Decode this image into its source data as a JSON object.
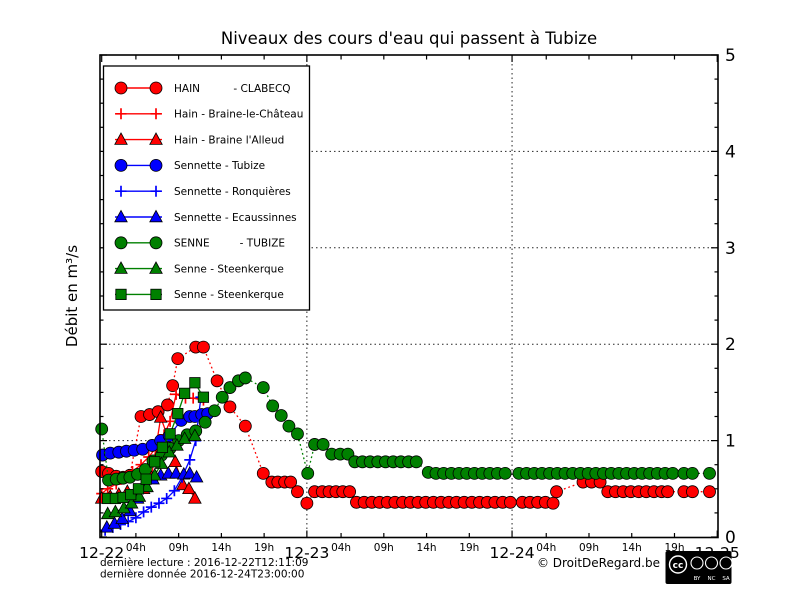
{
  "footer": {
    "last_reading": "dernière lecture : 2016-12-22T12:11:09",
    "last_data": "dernière donnée  2016-12-24T23:00:00",
    "copyright": "© DroitDeRegard.be",
    "license_parts": {
      "cc": "cc",
      "by": "BY",
      "nc": "NC",
      "sa": "SA"
    }
  },
  "chart_data": {
    "type": "line",
    "title": "Niveaux des cours d'eau qui passent à Tubize",
    "xlabel": "",
    "ylabel": "Débit en m³/s",
    "x_unit": "hours from 2016-12-22 00:00",
    "xlim": [
      0,
      72
    ],
    "ylim": [
      0,
      5
    ],
    "y_ticks": [
      0,
      1,
      2,
      3,
      4,
      5
    ],
    "y_tick_labels": [
      "0",
      "1",
      "2",
      "3",
      "4",
      "5"
    ],
    "y_minor_tick_step": 0.25,
    "x_day_labels": [
      "12-22",
      "12-23",
      "12-24",
      "12-25"
    ],
    "x_hour_labels": [
      "04h",
      "09h",
      "14h",
      "19h"
    ],
    "x_hour_offsets": [
      4,
      9,
      14,
      19
    ],
    "grid": "dotted horizontal at integers, dotted vertical at day boundaries",
    "legend_position": "upper left",
    "series": [
      {
        "id": "hain-clabecq",
        "label": "HAIN          - CLABECQ",
        "color": "#ff0000",
        "marker": "circle",
        "linestyle": "dotted",
        "points": [
          [
            0,
            0.68
          ],
          [
            0.8,
            0.66
          ],
          [
            1.7,
            0.63
          ],
          [
            2.5,
            0.62
          ],
          [
            3.3,
            0.64
          ],
          [
            4.6,
            1.25
          ],
          [
            5.6,
            1.27
          ],
          [
            6.6,
            1.3
          ],
          [
            7.7,
            1.37
          ],
          [
            8.3,
            1.57
          ],
          [
            8.9,
            1.85
          ],
          [
            11,
            1.97
          ],
          [
            11.9,
            1.97
          ],
          [
            13.5,
            1.62
          ],
          [
            15,
            1.35
          ],
          [
            16.8,
            1.15
          ],
          [
            18.9,
            0.66
          ],
          [
            19.9,
            0.57
          ],
          [
            20.6,
            0.57
          ],
          [
            21.4,
            0.57
          ],
          [
            22.1,
            0.57
          ],
          [
            22.9,
            0.47
          ],
          [
            24,
            0.35
          ],
          [
            24.9,
            0.47
          ],
          [
            25.8,
            0.47
          ],
          [
            26.6,
            0.47
          ],
          [
            27.4,
            0.47
          ],
          [
            28.2,
            0.47
          ],
          [
            29,
            0.47
          ],
          [
            29.8,
            0.36
          ],
          [
            30.7,
            0.36
          ],
          [
            31.6,
            0.36
          ],
          [
            32.5,
            0.36
          ],
          [
            33.4,
            0.36
          ],
          [
            34.3,
            0.36
          ],
          [
            35.2,
            0.36
          ],
          [
            36.1,
            0.36
          ],
          [
            37,
            0.36
          ],
          [
            37.9,
            0.36
          ],
          [
            38.8,
            0.36
          ],
          [
            39.7,
            0.36
          ],
          [
            40.6,
            0.36
          ],
          [
            41.5,
            0.36
          ],
          [
            42.4,
            0.36
          ],
          [
            43.3,
            0.36
          ],
          [
            44.2,
            0.36
          ],
          [
            45.1,
            0.36
          ],
          [
            46,
            0.36
          ],
          [
            46.9,
            0.36
          ],
          [
            47.8,
            0.36
          ],
          [
            49.2,
            0.36
          ],
          [
            50.1,
            0.36
          ],
          [
            51,
            0.36
          ],
          [
            51.9,
            0.36
          ],
          [
            52.8,
            0.35
          ],
          [
            53.2,
            0.47
          ],
          [
            56.3,
            0.57
          ],
          [
            57.3,
            0.57
          ],
          [
            58.3,
            0.57
          ],
          [
            59.2,
            0.47
          ],
          [
            60.1,
            0.47
          ],
          [
            61,
            0.47
          ],
          [
            61.9,
            0.47
          ],
          [
            62.8,
            0.47
          ],
          [
            63.7,
            0.47
          ],
          [
            64.6,
            0.47
          ],
          [
            65.5,
            0.47
          ],
          [
            66.2,
            0.47
          ],
          [
            68.1,
            0.47
          ],
          [
            69.1,
            0.47
          ],
          [
            71.1,
            0.47
          ]
        ]
      },
      {
        "id": "hain-braine-le-chateau",
        "label": "Hain - Braine-le-Château",
        "color": "#ff0000",
        "marker": "plus",
        "linestyle": "solid",
        "points": [
          [
            0,
            0.45
          ],
          [
            0.7,
            0.5
          ],
          [
            1.7,
            0.55
          ],
          [
            2.7,
            0.62
          ],
          [
            3.6,
            0.68
          ],
          [
            4.6,
            0.75
          ],
          [
            5.5,
            0.83
          ],
          [
            6.4,
            0.93
          ],
          [
            7.3,
            1.06
          ],
          [
            8,
            1.2
          ],
          [
            8.7,
            1.48
          ],
          [
            9.8,
            1.44
          ],
          [
            10.7,
            1.44
          ],
          [
            11.9,
            1.42
          ]
        ]
      },
      {
        "id": "hain-braine-l-alleud",
        "label": "Hain - Braine l'Alleud",
        "color": "#ff0000",
        "marker": "triangle",
        "linestyle": "solid",
        "points": [
          [
            0,
            0.4
          ],
          [
            1,
            0.42
          ],
          [
            2,
            0.44
          ],
          [
            3,
            0.47
          ],
          [
            4,
            0.47
          ],
          [
            4.9,
            0.5
          ],
          [
            5.8,
            0.62
          ],
          [
            6.9,
            1.24
          ],
          [
            7.7,
            1.05
          ],
          [
            8.6,
            0.78
          ],
          [
            9.5,
            0.54
          ],
          [
            10.2,
            0.5
          ],
          [
            10.9,
            0.4
          ]
        ]
      },
      {
        "id": "sennette-tubize",
        "label": "Sennette - Tubize",
        "color": "#0000ff",
        "marker": "circle",
        "linestyle": "solid",
        "points": [
          [
            0.1,
            0.85
          ],
          [
            1,
            0.87
          ],
          [
            2,
            0.88
          ],
          [
            2.9,
            0.89
          ],
          [
            3.8,
            0.9
          ],
          [
            4.8,
            0.91
          ],
          [
            5.9,
            0.95
          ],
          [
            6.9,
            1.0
          ],
          [
            7.9,
            1.05
          ],
          [
            9.3,
            1.21
          ],
          [
            10.3,
            1.25
          ],
          [
            10.9,
            1.25
          ],
          [
            11.7,
            1.27
          ],
          [
            12.4,
            1.28
          ]
        ]
      },
      {
        "id": "sennette-ronquieres",
        "label": "Sennette - Ronquières",
        "color": "#0000ff",
        "marker": "plus",
        "linestyle": "solid",
        "points": [
          [
            0.4,
            0.07
          ],
          [
            1.3,
            0.1
          ],
          [
            2.2,
            0.13
          ],
          [
            3.1,
            0.16
          ],
          [
            4,
            0.2
          ],
          [
            4.9,
            0.26
          ],
          [
            5.8,
            0.31
          ],
          [
            6.7,
            0.35
          ],
          [
            7.6,
            0.4
          ],
          [
            8.5,
            0.48
          ],
          [
            9.4,
            0.62
          ],
          [
            10.3,
            0.8
          ],
          [
            11,
            1.0
          ],
          [
            11.6,
            1.45
          ]
        ]
      },
      {
        "id": "sennette-ecaussinnes",
        "label": "Sennette - Ecaussinnes",
        "color": "#0000ff",
        "marker": "triangle",
        "linestyle": "solid",
        "points": [
          [
            0.6,
            0.1
          ],
          [
            1.5,
            0.14
          ],
          [
            2.4,
            0.19
          ],
          [
            3.3,
            0.27
          ],
          [
            4.2,
            0.4
          ],
          [
            5.1,
            0.52
          ],
          [
            6,
            0.6
          ],
          [
            6.9,
            0.64
          ],
          [
            7.8,
            0.66
          ],
          [
            8.7,
            0.66
          ],
          [
            9.6,
            0.65
          ],
          [
            10.3,
            0.66
          ],
          [
            11.1,
            0.62
          ]
        ]
      },
      {
        "id": "senne-tubize",
        "label": "SENNE         - TUBIZE",
        "color": "#008000",
        "marker": "circle",
        "linestyle": "dotted",
        "points": [
          [
            0,
            1.12
          ],
          [
            0.8,
            0.59
          ],
          [
            1.7,
            0.6
          ],
          [
            2.5,
            0.61
          ],
          [
            3.3,
            0.62
          ],
          [
            4.2,
            0.65
          ],
          [
            5.1,
            0.7
          ],
          [
            6,
            0.79
          ],
          [
            7,
            0.85
          ],
          [
            8,
            0.92
          ],
          [
            9,
            1.0
          ],
          [
            10,
            1.06
          ],
          [
            11,
            1.1
          ],
          [
            12.1,
            1.19
          ],
          [
            13.2,
            1.31
          ],
          [
            14.1,
            1.45
          ],
          [
            15,
            1.55
          ],
          [
            16,
            1.62
          ],
          [
            16.8,
            1.65
          ],
          [
            18.9,
            1.55
          ],
          [
            20,
            1.36
          ],
          [
            21,
            1.26
          ],
          [
            21.9,
            1.15
          ],
          [
            22.9,
            1.07
          ],
          [
            24.1,
            0.66
          ],
          [
            24.9,
            0.96
          ],
          [
            25.9,
            0.96
          ],
          [
            26.9,
            0.86
          ],
          [
            27.9,
            0.86
          ],
          [
            28.8,
            0.86
          ],
          [
            29.6,
            0.78
          ],
          [
            30.5,
            0.78
          ],
          [
            31.4,
            0.78
          ],
          [
            32.3,
            0.78
          ],
          [
            33.2,
            0.78
          ],
          [
            34.1,
            0.78
          ],
          [
            35,
            0.78
          ],
          [
            35.9,
            0.78
          ],
          [
            36.8,
            0.78
          ],
          [
            38.2,
            0.67
          ],
          [
            39.1,
            0.66
          ],
          [
            40,
            0.66
          ],
          [
            40.9,
            0.66
          ],
          [
            41.8,
            0.66
          ],
          [
            42.7,
            0.66
          ],
          [
            43.6,
            0.66
          ],
          [
            44.5,
            0.66
          ],
          [
            45.4,
            0.66
          ],
          [
            46.3,
            0.66
          ],
          [
            47.2,
            0.66
          ],
          [
            48.8,
            0.66
          ],
          [
            49.7,
            0.66
          ],
          [
            50.6,
            0.66
          ],
          [
            51.5,
            0.66
          ],
          [
            52.4,
            0.66
          ],
          [
            53.3,
            0.66
          ],
          [
            54.2,
            0.66
          ],
          [
            55.1,
            0.66
          ],
          [
            56,
            0.66
          ],
          [
            56.9,
            0.66
          ],
          [
            57.8,
            0.66
          ],
          [
            58.7,
            0.66
          ],
          [
            59.6,
            0.66
          ],
          [
            60.5,
            0.66
          ],
          [
            61.4,
            0.66
          ],
          [
            62.3,
            0.66
          ],
          [
            63.2,
            0.66
          ],
          [
            64.1,
            0.66
          ],
          [
            65,
            0.66
          ],
          [
            65.9,
            0.66
          ],
          [
            66.8,
            0.66
          ],
          [
            68.1,
            0.66
          ],
          [
            69.1,
            0.66
          ],
          [
            71.1,
            0.66
          ]
        ]
      },
      {
        "id": "senne-steenkerque-triangle",
        "label": "Senne - Steenkerque",
        "color": "#008000",
        "marker": "triangle",
        "linestyle": "solid",
        "points": [
          [
            0.7,
            0.24
          ],
          [
            1.6,
            0.26
          ],
          [
            2.6,
            0.3
          ],
          [
            3.5,
            0.35
          ],
          [
            4.4,
            0.42
          ],
          [
            5.3,
            0.52
          ],
          [
            6.2,
            0.64
          ],
          [
            7,
            0.76
          ],
          [
            7.9,
            0.88
          ],
          [
            8.8,
            0.95
          ],
          [
            9.7,
            1.02
          ],
          [
            10.9,
            1.05
          ]
        ]
      },
      {
        "id": "senne-steenkerque-square",
        "label": "Senne - Steenkerque",
        "color": "#008000",
        "marker": "square",
        "linestyle": "solid",
        "points": [
          [
            0.7,
            0.4
          ],
          [
            1.6,
            0.4
          ],
          [
            2.5,
            0.41
          ],
          [
            3.4,
            0.44
          ],
          [
            4.3,
            0.5
          ],
          [
            5.2,
            0.6
          ],
          [
            6.2,
            0.78
          ],
          [
            7.1,
            0.93
          ],
          [
            8,
            1.07
          ],
          [
            8.9,
            1.28
          ],
          [
            9.7,
            1.49
          ],
          [
            10.9,
            1.6
          ],
          [
            11.9,
            1.45
          ]
        ]
      }
    ]
  }
}
